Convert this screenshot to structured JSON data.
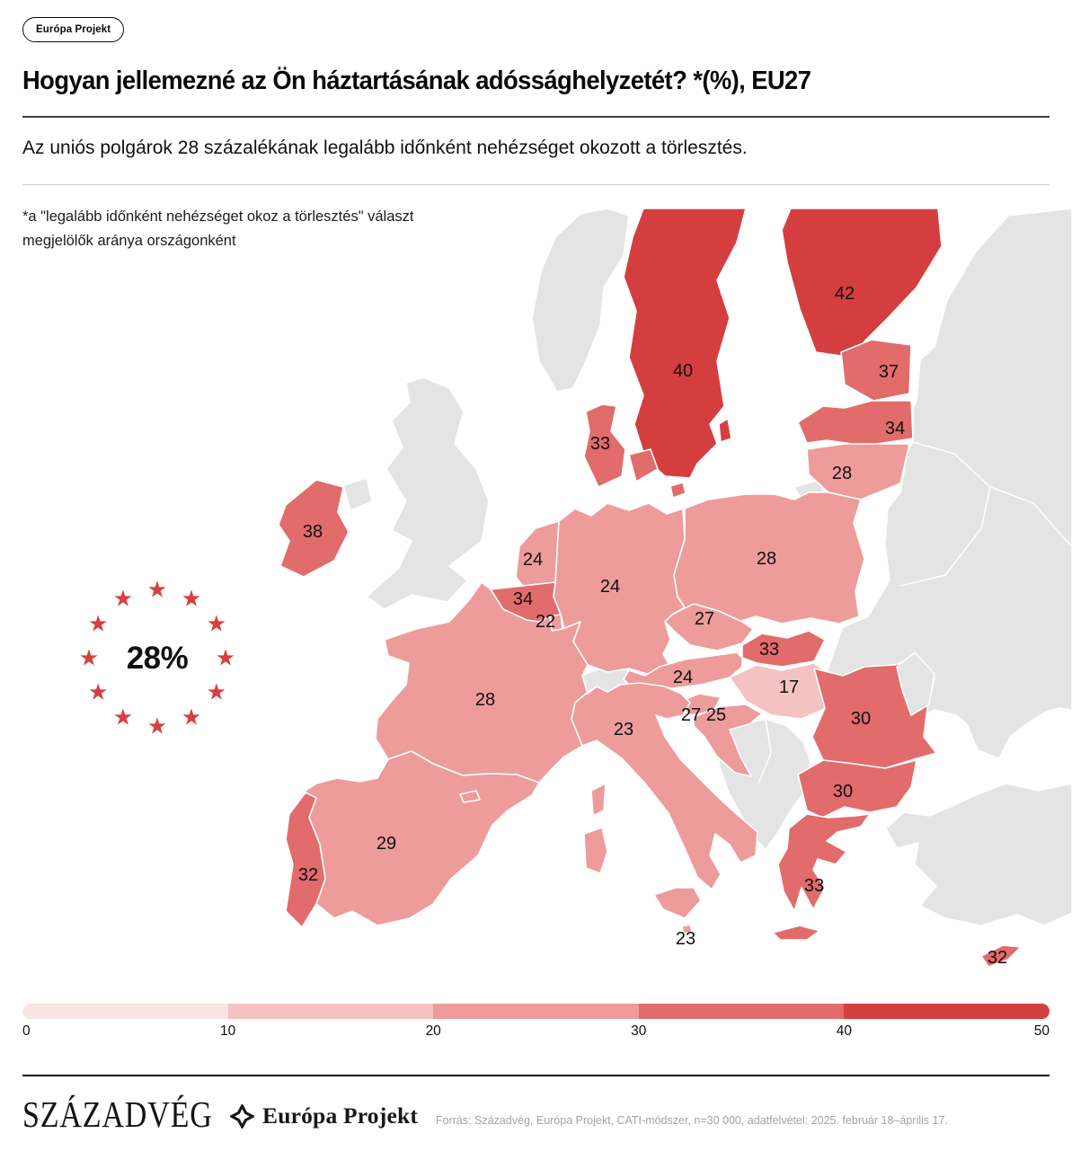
{
  "badge": {
    "label": "Európa Projekt"
  },
  "header": {
    "title": "Hogyan jellemezné az Ön háztartásának adóssághelyzetét? *(%), EU27",
    "subtitle": "Az uniós polgárok 28 százalékának legalább időnként nehézséget okozott a törlesztés.",
    "note": "*a \"legalább időnként nehézséget okoz a törlesztés\" választ megjelölők aránya országonként"
  },
  "eu_badge": {
    "value": "28%",
    "star_count": 12,
    "star_color": "#d6403f"
  },
  "theme": {
    "accent_red": "#d6403f",
    "noneu_fill": "#e4e4e4",
    "map_border": "#ffffff",
    "grey_line": "#cccccc",
    "dark_line": "#1a1a1a",
    "source_color": "#a3a3a3"
  },
  "map": {
    "countries": [
      {
        "id": "finland",
        "name": "Finland",
        "value": 42
      },
      {
        "id": "sweden",
        "name": "Sweden",
        "value": 40
      },
      {
        "id": "estonia",
        "name": "Estonia",
        "value": 37
      },
      {
        "id": "latvia",
        "name": "Latvia",
        "value": 34
      },
      {
        "id": "lithuania",
        "name": "Lithuania",
        "value": 28
      },
      {
        "id": "denmark",
        "name": "Denmark",
        "value": 33
      },
      {
        "id": "ireland",
        "name": "Ireland",
        "value": 38
      },
      {
        "id": "netherlands",
        "name": "Netherlands",
        "value": 24
      },
      {
        "id": "belgium",
        "name": "Belgium",
        "value": 34
      },
      {
        "id": "luxembourg",
        "name": "Luxembourg",
        "value": 22
      },
      {
        "id": "germany",
        "name": "Germany",
        "value": 24
      },
      {
        "id": "poland",
        "name": "Poland",
        "value": 28
      },
      {
        "id": "czechia",
        "name": "Czechia",
        "value": 27
      },
      {
        "id": "austria",
        "name": "Austria",
        "value": 24
      },
      {
        "id": "slovakia",
        "name": "Slovakia",
        "value": 33
      },
      {
        "id": "hungary",
        "name": "Hungary",
        "value": 17
      },
      {
        "id": "slovenia",
        "name": "Slovenia",
        "value": 27
      },
      {
        "id": "croatia",
        "name": "Croatia",
        "value": 25
      },
      {
        "id": "romania",
        "name": "Romania",
        "value": 30
      },
      {
        "id": "bulgaria",
        "name": "Bulgaria",
        "value": 30
      },
      {
        "id": "greece",
        "name": "Greece",
        "value": 33
      },
      {
        "id": "italy",
        "name": "Italy",
        "value": 23
      },
      {
        "id": "france",
        "name": "France",
        "value": 28
      },
      {
        "id": "spain",
        "name": "Spain",
        "value": 29
      },
      {
        "id": "portugal",
        "name": "Portugal",
        "value": 32
      },
      {
        "id": "malta",
        "name": "Malta",
        "value": 23
      },
      {
        "id": "cyprus",
        "name": "Cyprus",
        "value": 32
      }
    ]
  },
  "legend": {
    "ticks": [
      "0",
      "10",
      "20",
      "30",
      "40",
      "50"
    ],
    "colors": [
      "#fbe4e4",
      "#f4c2c2",
      "#ee9b9b",
      "#e26b6b",
      "#d53e3e"
    ]
  },
  "footer": {
    "brand": "SZÁZADVÉG",
    "project": "Európa Projekt",
    "source": "Forrás: Századvég, Európa Projekt, CATI-módszer, n=30 000, adatfelvétel: 2025. február 18–április 17."
  },
  "chart_data": {
    "type": "heatmap",
    "subtype": "choropleth_map_europe",
    "title": "Hogyan jellemezné az Ön háztartásának adóssághelyzetét? *(%), EU27",
    "unit": "%",
    "eu27_average": 28,
    "categories": [
      "Finland",
      "Sweden",
      "Estonia",
      "Latvia",
      "Lithuania",
      "Denmark",
      "Ireland",
      "Netherlands",
      "Belgium",
      "Luxembourg",
      "Germany",
      "Poland",
      "Czechia",
      "Austria",
      "Slovakia",
      "Hungary",
      "Slovenia",
      "Croatia",
      "Romania",
      "Bulgaria",
      "Greece",
      "Italy",
      "France",
      "Spain",
      "Portugal",
      "Malta",
      "Cyprus"
    ],
    "values": [
      42,
      40,
      37,
      34,
      28,
      33,
      38,
      24,
      34,
      22,
      24,
      28,
      27,
      24,
      33,
      17,
      27,
      25,
      30,
      30,
      33,
      23,
      28,
      29,
      32,
      23,
      32
    ],
    "scale": {
      "min": 0,
      "max": 50,
      "ticks": [
        0,
        10,
        20,
        30,
        40,
        50
      ],
      "colors": [
        "#fbe4e4",
        "#f4c2c2",
        "#ee9b9b",
        "#e26b6b",
        "#d53e3e"
      ],
      "legend_position": "bottom"
    }
  }
}
